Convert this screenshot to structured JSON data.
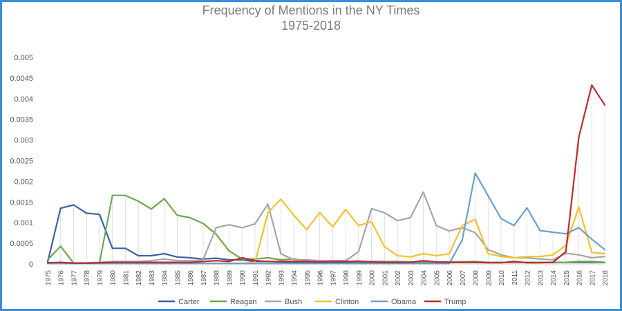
{
  "chart_data": {
    "type": "line",
    "title": "Frequency of Mentions in the NY Times",
    "subtitle": "1975-2018",
    "xlabel": "",
    "ylabel": "",
    "ylim": [
      0,
      0.005
    ],
    "y_ticks": [
      "0",
      "0.0005",
      "0.001",
      "0.0015",
      "0.002",
      "0.0025",
      "0.003",
      "0.0035",
      "0.004",
      "0.0045",
      "0.005"
    ],
    "legend_position": "bottom",
    "grid": "vertical drop lines",
    "x": [
      "1975",
      "1976",
      "1977",
      "1978",
      "1979",
      "1980",
      "1981",
      "1982",
      "1983",
      "1984",
      "1985",
      "1986",
      "1987",
      "1988",
      "1989",
      "1990",
      "1991",
      "1992",
      "1993",
      "1994",
      "1995",
      "1996",
      "1997",
      "1998",
      "1999",
      "2000",
      "2001",
      "2002",
      "2003",
      "2004",
      "2005",
      "2006",
      "2007",
      "2008",
      "2009",
      "2010",
      "2011",
      "2012",
      "2013",
      "2014",
      "2015",
      "2016",
      "2017",
      "2018"
    ],
    "series": [
      {
        "name": "Carter",
        "color": "#3c5fa6",
        "values": [
          5e-05,
          0.00135,
          0.00143,
          0.00123,
          0.0012,
          0.00038,
          0.00038,
          0.0002,
          0.0002,
          0.00025,
          0.00017,
          0.00015,
          0.00012,
          0.00014,
          0.0001,
          0.0001,
          6e-05,
          6e-05,
          5e-05,
          4e-05,
          4e-05,
          4e-05,
          4e-05,
          4e-05,
          4e-05,
          4e-05,
          4e-05,
          4e-05,
          4e-05,
          4e-05,
          4e-05,
          4e-05,
          4e-05,
          4e-05,
          4e-05,
          4e-05,
          4e-05,
          4e-05,
          4e-05,
          4e-05,
          4e-05,
          4e-05,
          4e-05,
          4e-05
        ]
      },
      {
        "name": "Reagan",
        "color": "#6aa84f",
        "values": [
          0.0001,
          0.00043,
          2e-05,
          2e-05,
          3e-05,
          0.00166,
          0.00166,
          0.00152,
          0.00133,
          0.00158,
          0.00118,
          0.00112,
          0.00098,
          0.00072,
          0.00032,
          0.00012,
          0.00012,
          0.00015,
          0.0001,
          0.00012,
          8e-05,
          8e-05,
          6e-05,
          6e-05,
          6e-05,
          6e-05,
          6e-05,
          6e-05,
          5e-05,
          5e-05,
          5e-05,
          5e-05,
          5e-05,
          6e-05,
          4e-05,
          4e-05,
          4e-05,
          4e-05,
          4e-05,
          4e-05,
          4e-05,
          6e-05,
          6e-05,
          4e-05
        ]
      },
      {
        "name": "Bush",
        "color": "#a5a5a5",
        "values": [
          3e-05,
          3e-05,
          3e-05,
          3e-05,
          4e-05,
          6e-05,
          6e-05,
          6e-05,
          8e-05,
          0.00012,
          8e-05,
          8e-05,
          0.0001,
          0.00088,
          0.00095,
          0.00088,
          0.00097,
          0.00145,
          0.00025,
          0.0001,
          0.0001,
          8e-05,
          8e-05,
          8e-05,
          0.0003,
          0.00134,
          0.00124,
          0.00105,
          0.00112,
          0.00174,
          0.00093,
          0.0008,
          0.00088,
          0.00076,
          0.00035,
          0.00022,
          0.00015,
          0.00015,
          0.00012,
          0.0001,
          0.00026,
          0.00022,
          0.00015,
          0.00018
        ]
      },
      {
        "name": "Clinton",
        "color": "#f2c12e",
        "values": [
          2e-05,
          2e-05,
          2e-05,
          2e-05,
          2e-05,
          2e-05,
          2e-05,
          2e-05,
          2e-05,
          2e-05,
          2e-05,
          2e-05,
          2e-05,
          2e-05,
          2e-05,
          2e-05,
          4e-05,
          0.00124,
          0.00157,
          0.00118,
          0.00083,
          0.00125,
          0.0009,
          0.00132,
          0.00093,
          0.00102,
          0.00042,
          0.0002,
          0.00017,
          0.00025,
          0.0002,
          0.00025,
          0.00093,
          0.00108,
          0.00025,
          0.00018,
          0.00015,
          0.00018,
          0.00018,
          0.00022,
          0.00045,
          0.00138,
          0.00028,
          0.00025
        ]
      },
      {
        "name": "Obama",
        "color": "#6a9fcf",
        "values": [
          1e-05,
          1e-05,
          1e-05,
          1e-05,
          1e-05,
          1e-05,
          1e-05,
          1e-05,
          1e-05,
          1e-05,
          1e-05,
          1e-05,
          1e-05,
          1e-05,
          1e-05,
          1e-05,
          1e-05,
          1e-05,
          1e-05,
          1e-05,
          1e-05,
          1e-05,
          1e-05,
          1e-05,
          1e-05,
          1e-05,
          1e-05,
          1e-05,
          1e-05,
          1e-05,
          1e-05,
          1e-05,
          0.00058,
          0.0022,
          0.00165,
          0.0011,
          0.00093,
          0.00136,
          0.00081,
          0.00077,
          0.00073,
          0.00088,
          0.0006,
          0.00035
        ]
      },
      {
        "name": "Trump",
        "color": "#c0282d",
        "values": [
          3e-05,
          4e-05,
          2e-05,
          2e-05,
          3e-05,
          4e-05,
          4e-05,
          4e-05,
          4e-05,
          4e-05,
          4e-05,
          4e-05,
          6e-05,
          8e-05,
          6e-05,
          0.00015,
          8e-05,
          6e-05,
          6e-05,
          6e-05,
          6e-05,
          5e-05,
          6e-05,
          6e-05,
          7e-05,
          5e-05,
          4e-05,
          4e-05,
          4e-05,
          8e-05,
          5e-05,
          4e-05,
          4e-05,
          4e-05,
          3e-05,
          3e-05,
          6e-05,
          3e-05,
          3e-05,
          4e-05,
          0.0003,
          0.00307,
          0.00433,
          0.00385
        ]
      }
    ]
  }
}
